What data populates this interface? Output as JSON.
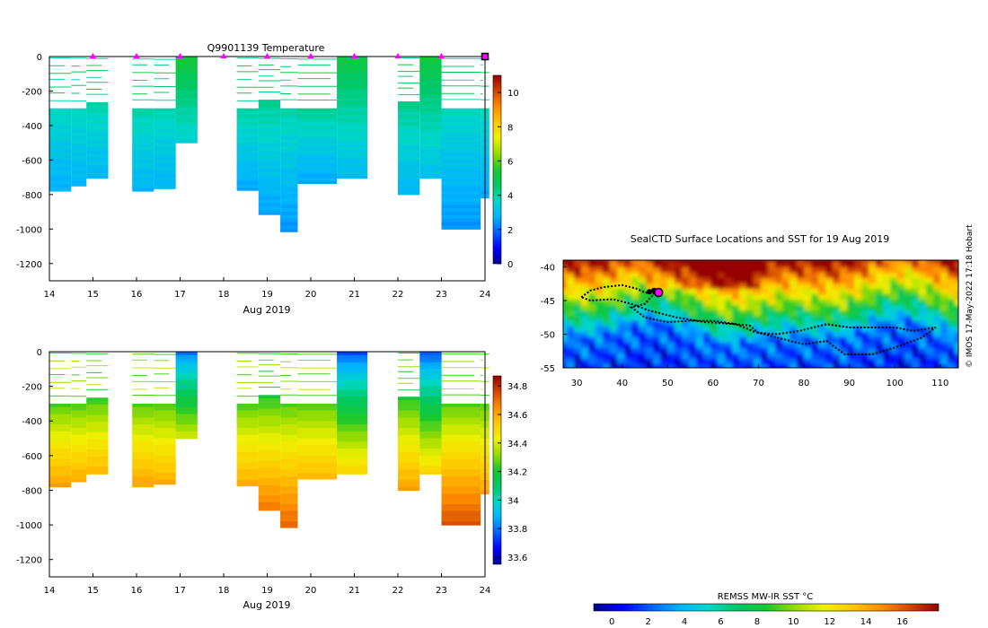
{
  "chart_data": [
    {
      "type": "heatmap",
      "id": "temp",
      "title": "Q9901139  Temperature",
      "xlabel": "Aug 2019",
      "ylabel": "",
      "xlim": [
        14,
        24
      ],
      "ylim": [
        -1300,
        0
      ],
      "x_ticks": [
        14,
        15,
        16,
        17,
        18,
        19,
        20,
        21,
        22,
        23,
        24
      ],
      "y_ticks": [
        0,
        -200,
        -400,
        -600,
        -800,
        -1000,
        -1200
      ],
      "colorbar": {
        "min": 0,
        "max": 11,
        "ticks": [
          0,
          2,
          4,
          6,
          8,
          10
        ]
      },
      "profile_markers": [
        15,
        16,
        17,
        18,
        19,
        20,
        21,
        22,
        23
      ],
      "profiles": [
        {
          "x0": 14.0,
          "x1": 14.5,
          "max_depth": 780,
          "top": 300,
          "surface": 3.8,
          "deep": 2.7
        },
        {
          "x0": 14.5,
          "x1": 14.85,
          "max_depth": 750,
          "top": 300,
          "surface": 3.8,
          "deep": 2.8
        },
        {
          "x0": 14.85,
          "x1": 15.35,
          "max_depth": 705,
          "top": 265,
          "surface": 3.9,
          "deep": 2.8
        },
        {
          "x0": 15.9,
          "x1": 16.4,
          "max_depth": 780,
          "top": 300,
          "surface": 4.0,
          "deep": 2.8
        },
        {
          "x0": 16.4,
          "x1": 16.9,
          "max_depth": 765,
          "top": 300,
          "surface": 3.9,
          "deep": 2.8
        },
        {
          "x0": 16.9,
          "x1": 17.4,
          "max_depth": 500,
          "top": 0,
          "surface": 5.4,
          "deep": 3.4
        },
        {
          "x0": 18.3,
          "x1": 18.8,
          "max_depth": 775,
          "top": 300,
          "surface": 4.1,
          "deep": 2.6
        },
        {
          "x0": 18.8,
          "x1": 19.3,
          "max_depth": 915,
          "top": 250,
          "surface": 4.2,
          "deep": 2.5
        },
        {
          "x0": 19.3,
          "x1": 19.7,
          "max_depth": 1015,
          "top": 300,
          "surface": 4.0,
          "deep": 2.4
        },
        {
          "x0": 19.7,
          "x1": 20.6,
          "max_depth": 735,
          "top": 300,
          "surface": 4.2,
          "deep": 2.6
        },
        {
          "x0": 20.6,
          "x1": 21.3,
          "max_depth": 705,
          "top": 0,
          "surface": 5.2,
          "deep": 2.9
        },
        {
          "x0": 22.0,
          "x1": 22.5,
          "max_depth": 800,
          "top": 260,
          "surface": 4.3,
          "deep": 2.8
        },
        {
          "x0": 22.5,
          "x1": 23.0,
          "max_depth": 705,
          "top": 0,
          "surface": 5.3,
          "deep": 3.0
        },
        {
          "x0": 23.0,
          "x1": 23.9,
          "max_depth": 1000,
          "top": 300,
          "surface": 3.8,
          "deep": 2.4
        },
        {
          "x0": 23.9,
          "x1": 24.1,
          "max_depth": 820,
          "top": 300,
          "surface": 3.8,
          "deep": 2.6
        }
      ]
    },
    {
      "type": "heatmap",
      "id": "sal",
      "title": "",
      "xlabel": "Aug 2019",
      "ylabel": "",
      "xlim": [
        14,
        24
      ],
      "ylim": [
        -1300,
        0
      ],
      "x_ticks": [
        14,
        15,
        16,
        17,
        18,
        19,
        20,
        21,
        22,
        23,
        24
      ],
      "y_ticks": [
        0,
        -200,
        -400,
        -600,
        -800,
        -1000,
        -1200
      ],
      "colorbar": {
        "min": 33.55,
        "max": 34.87,
        "ticks": [
          33.6,
          33.8,
          34,
          34.2,
          34.4,
          34.6,
          34.8
        ]
      },
      "profiles": [
        {
          "x0": 14.0,
          "x1": 14.5,
          "max_depth": 780,
          "top": 300,
          "surface": 34.25,
          "deep": 34.62
        },
        {
          "x0": 14.5,
          "x1": 14.85,
          "max_depth": 750,
          "top": 300,
          "surface": 34.25,
          "deep": 34.6
        },
        {
          "x0": 14.85,
          "x1": 15.35,
          "max_depth": 705,
          "top": 265,
          "surface": 34.22,
          "deep": 34.58
        },
        {
          "x0": 15.9,
          "x1": 16.4,
          "max_depth": 780,
          "top": 300,
          "surface": 34.25,
          "deep": 34.62
        },
        {
          "x0": 16.4,
          "x1": 16.9,
          "max_depth": 765,
          "top": 300,
          "surface": 34.25,
          "deep": 34.6
        },
        {
          "x0": 16.9,
          "x1": 17.4,
          "max_depth": 500,
          "top": 0,
          "surface": 33.8,
          "deep": 34.4
        },
        {
          "x0": 18.3,
          "x1": 18.8,
          "max_depth": 775,
          "top": 300,
          "surface": 34.25,
          "deep": 34.6
        },
        {
          "x0": 18.8,
          "x1": 19.3,
          "max_depth": 915,
          "top": 250,
          "surface": 34.2,
          "deep": 34.68
        },
        {
          "x0": 19.3,
          "x1": 19.7,
          "max_depth": 1015,
          "top": 300,
          "surface": 34.25,
          "deep": 34.72
        },
        {
          "x0": 19.7,
          "x1": 20.6,
          "max_depth": 735,
          "top": 300,
          "surface": 34.25,
          "deep": 34.58
        },
        {
          "x0": 20.6,
          "x1": 21.3,
          "max_depth": 705,
          "top": 0,
          "surface": 33.75,
          "deep": 34.52
        },
        {
          "x0": 22.0,
          "x1": 22.5,
          "max_depth": 800,
          "top": 260,
          "surface": 34.2,
          "deep": 34.62
        },
        {
          "x0": 22.5,
          "x1": 23.0,
          "max_depth": 705,
          "top": 0,
          "surface": 33.75,
          "deep": 34.52
        },
        {
          "x0": 23.0,
          "x1": 23.9,
          "max_depth": 1000,
          "top": 300,
          "surface": 34.25,
          "deep": 34.75
        },
        {
          "x0": 23.9,
          "x1": 24.1,
          "max_depth": 820,
          "top": 300,
          "surface": 34.25,
          "deep": 34.62
        }
      ]
    },
    {
      "type": "map",
      "id": "sst_map",
      "title": "SealCTD Surface Locations and SST for 19 Aug 2019",
      "xlim": [
        27,
        114
      ],
      "ylim": [
        -55,
        -39
      ],
      "x_ticks": [
        30,
        40,
        50,
        60,
        70,
        80,
        90,
        100,
        110
      ],
      "y_ticks": [
        -40,
        -45,
        -50,
        -55
      ],
      "track": [
        [
          31,
          -44.5
        ],
        [
          33,
          -43.5
        ],
        [
          36,
          -43
        ],
        [
          40,
          -42.7
        ],
        [
          43,
          -43.2
        ],
        [
          45,
          -43.8
        ],
        [
          47,
          -44
        ],
        [
          45,
          -45.5
        ],
        [
          42,
          -46
        ],
        [
          45,
          -47.5
        ],
        [
          50,
          -48.2
        ],
        [
          55,
          -48
        ],
        [
          60,
          -48
        ],
        [
          65,
          -48.5
        ],
        [
          68,
          -48.7
        ],
        [
          70,
          -49.8
        ],
        [
          74,
          -50
        ],
        [
          79,
          -49.5
        ],
        [
          85,
          -48.5
        ],
        [
          90,
          -49
        ],
        [
          96,
          -49
        ],
        [
          100,
          -49
        ],
        [
          104,
          -49.5
        ],
        [
          109,
          -49
        ],
        [
          106,
          -50.5
        ],
        [
          100,
          -52
        ],
        [
          95,
          -53
        ],
        [
          89,
          -53
        ],
        [
          85,
          -51
        ],
        [
          80,
          -51.5
        ],
        [
          74,
          -50.5
        ],
        [
          69,
          -49.6
        ],
        [
          65,
          -48.5
        ],
        [
          58,
          -48.2
        ],
        [
          52,
          -47.5
        ],
        [
          46,
          -46.5
        ],
        [
          42,
          -45.5
        ],
        [
          38,
          -44.8
        ],
        [
          33,
          -45
        ],
        [
          31,
          -44.5
        ]
      ],
      "current_location": [
        48,
        -43.8
      ],
      "recent_locations": [
        [
          46,
          -43.7
        ],
        [
          47,
          -43.5
        ]
      ],
      "colorbar": {
        "label": "REMSS MW-IR SST °C",
        "min": -1,
        "max": 18,
        "ticks": [
          0,
          2,
          4,
          6,
          8,
          10,
          12,
          14,
          16
        ]
      },
      "credit": "© IMOS 17-May-2022 17:18 Hobart"
    }
  ],
  "colormap": [
    "#00008f",
    "#0000ff",
    "#0060ff",
    "#00b4ff",
    "#00d7c8",
    "#00c864",
    "#18c830",
    "#96dc00",
    "#f0f000",
    "#ffc800",
    "#ff8c00",
    "#d24600",
    "#960000"
  ],
  "marker_color": "#ff00ff",
  "track_color": "#000000"
}
